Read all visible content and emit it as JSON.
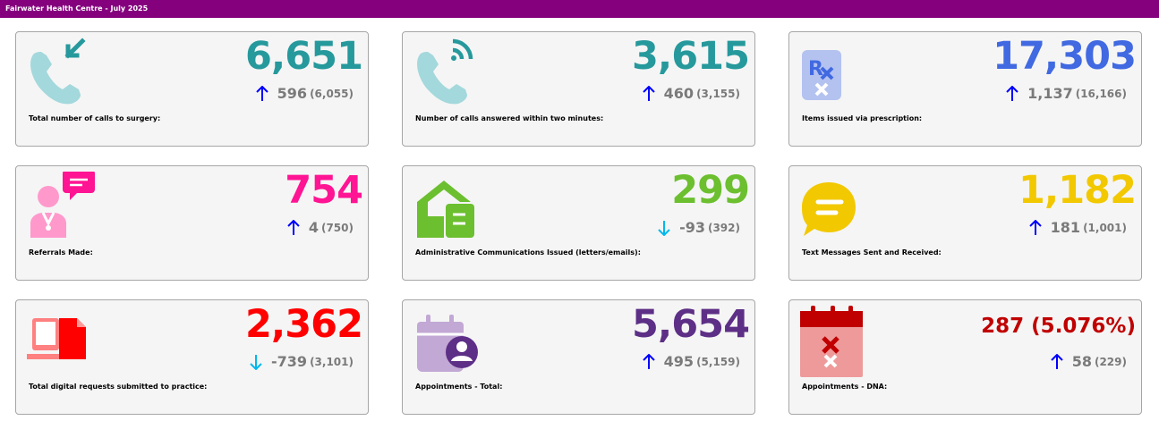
{
  "header": {
    "title": "Fairwater Health Centre - July 2025"
  },
  "cards": [
    {
      "label": "Total number of calls to surgery:",
      "value": "6,651",
      "delta": "596",
      "previous": "(6,055)",
      "trend": "up",
      "color": "#26999c",
      "icon": "phone-incoming-icon"
    },
    {
      "label": "Number of calls answered within two minutes:",
      "value": "3,615",
      "delta": "460",
      "previous": "(3,155)",
      "trend": "up",
      "color": "#26999c",
      "icon": "phone-ringing-icon"
    },
    {
      "label": "Items issued via prescription:",
      "value": "17,303",
      "delta": "1,137",
      "previous": "(16,166)",
      "trend": "up",
      "color": "#4169e1",
      "icon": "prescription-icon"
    },
    {
      "label": "Referrals Made:",
      "value": "754",
      "delta": "4",
      "previous": "(750)",
      "trend": "up",
      "color": "#ff1493",
      "icon": "doctor-chat-icon"
    },
    {
      "label": "Administrative Communications Issued (letters/emails):",
      "value": "299",
      "delta": "-93",
      "previous": "(392)",
      "trend": "down",
      "color": "#6cbf2f",
      "icon": "house-letter-icon"
    },
    {
      "label": "Text Messages Sent and Received:",
      "value": "1,182",
      "delta": "181",
      "previous": "(1,001)",
      "trend": "up",
      "color": "#f2c800",
      "icon": "message-bubble-icon"
    },
    {
      "label": "Total digital requests submitted to practice:",
      "value": "2,362",
      "delta": "-739",
      "previous": "(3,101)",
      "trend": "down",
      "color": "#ff0000",
      "icon": "digital-document-icon"
    },
    {
      "label": "Appointments - Total:",
      "value": "5,654",
      "delta": "495",
      "previous": "(5,159)",
      "trend": "up",
      "color": "#5d2f86",
      "icon": "calendar-user-icon"
    },
    {
      "label": "Appointments - DNA:",
      "value": "287 (5.076%)",
      "delta": "58",
      "previous": "(229)",
      "trend": "up",
      "color": "#c00000",
      "icon": "calendar-cross-icon"
    }
  ],
  "colors": {
    "header_bg": "#84007d",
    "up_arrow": "#0000ff",
    "down_arrow": "#00b7eb",
    "delta_text": "#7a7a7a"
  }
}
